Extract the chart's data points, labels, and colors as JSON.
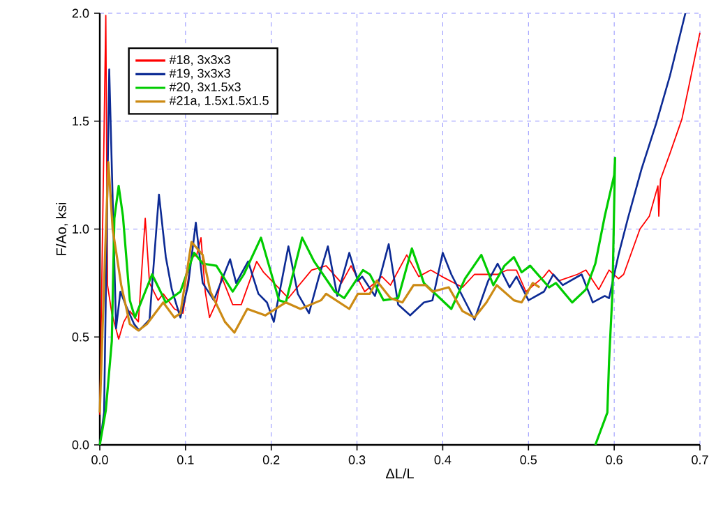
{
  "chart_data": {
    "type": "line",
    "xlabel": "ΔL/L",
    "ylabel": "F/Ao,  ksi",
    "xlim": [
      0,
      0.7
    ],
    "ylim": [
      0,
      2.0
    ],
    "xticks": [
      {
        "value": 0,
        "label": "0.0"
      },
      {
        "value": 0.1,
        "label": "0.1"
      },
      {
        "value": 0.2,
        "label": "0.2"
      },
      {
        "value": 0.3,
        "label": "0.3"
      },
      {
        "value": 0.4,
        "label": "0.4"
      },
      {
        "value": 0.5,
        "label": "0.5"
      },
      {
        "value": 0.6,
        "label": "0.6"
      },
      {
        "value": 0.7,
        "label": "0.7"
      }
    ],
    "yticks": [
      {
        "value": 0,
        "label": "0.0"
      },
      {
        "value": 0.5,
        "label": "0.5"
      },
      {
        "value": 1.0,
        "label": "1.0"
      },
      {
        "value": 1.5,
        "label": "1.5"
      },
      {
        "value": 2.0,
        "label": "2.0"
      }
    ],
    "grid": true,
    "legend": "top left",
    "marker": "none",
    "line_style": "solid",
    "series": [
      {
        "name": "#18, 3x3x3",
        "color": "#ff0000",
        "x": [
          0,
          0.007,
          0.009,
          0.014,
          0.022,
          0.028,
          0.035,
          0.045,
          0.053,
          0.058,
          0.068,
          0.074,
          0.087,
          0.097,
          0.107,
          0.113,
          0.118,
          0.123,
          0.128,
          0.136,
          0.142,
          0.155,
          0.165,
          0.183,
          0.191,
          0.22,
          0.247,
          0.264,
          0.282,
          0.293,
          0.309,
          0.329,
          0.339,
          0.358,
          0.372,
          0.386,
          0.399,
          0.423,
          0.437,
          0.453,
          0.464,
          0.475,
          0.486,
          0.497,
          0.518,
          0.524,
          0.535,
          0.557,
          0.567,
          0.582,
          0.594,
          0.605,
          0.611,
          0.63,
          0.641,
          0.651,
          0.652,
          0.654,
          0.665,
          0.679,
          0.687,
          0.7
        ],
        "values": [
          0.14,
          1.99,
          0.74,
          0.61,
          0.49,
          0.57,
          0.62,
          0.57,
          1.05,
          0.75,
          0.67,
          0.7,
          0.63,
          0.61,
          0.87,
          0.88,
          0.96,
          0.71,
          0.59,
          0.66,
          0.78,
          0.65,
          0.65,
          0.85,
          0.8,
          0.68,
          0.81,
          0.83,
          0.75,
          0.83,
          0.71,
          0.78,
          0.74,
          0.88,
          0.78,
          0.81,
          0.78,
          0.73,
          0.79,
          0.79,
          0.79,
          0.81,
          0.81,
          0.71,
          0.78,
          0.81,
          0.76,
          0.79,
          0.81,
          0.72,
          0.81,
          0.77,
          0.79,
          1.0,
          1.06,
          1.2,
          1.06,
          1.23,
          1.35,
          1.51,
          1.66,
          1.91
        ]
      },
      {
        "name": "#19, 3x3x3",
        "color": "#0c2a94",
        "x": [
          0,
          0.005,
          0.011,
          0.019,
          0.024,
          0.03,
          0.04,
          0.046,
          0.058,
          0.069,
          0.077,
          0.084,
          0.094,
          0.103,
          0.112,
          0.12,
          0.133,
          0.152,
          0.159,
          0.173,
          0.185,
          0.195,
          0.203,
          0.22,
          0.231,
          0.244,
          0.255,
          0.266,
          0.277,
          0.291,
          0.301,
          0.306,
          0.321,
          0.337,
          0.348,
          0.362,
          0.378,
          0.388,
          0.4,
          0.41,
          0.437,
          0.453,
          0.464,
          0.478,
          0.486,
          0.5,
          0.518,
          0.529,
          0.54,
          0.562,
          0.575,
          0.589,
          0.594,
          0.605,
          0.616,
          0.632,
          0.649,
          0.665,
          0.683
        ],
        "values": [
          0.0,
          0.15,
          1.74,
          0.54,
          0.71,
          0.65,
          0.56,
          0.53,
          0.58,
          1.16,
          0.87,
          0.72,
          0.59,
          0.74,
          1.03,
          0.75,
          0.67,
          0.86,
          0.75,
          0.85,
          0.7,
          0.66,
          0.57,
          0.92,
          0.7,
          0.61,
          0.77,
          0.92,
          0.69,
          0.89,
          0.76,
          0.78,
          0.69,
          0.93,
          0.65,
          0.6,
          0.66,
          0.67,
          0.89,
          0.79,
          0.58,
          0.76,
          0.84,
          0.73,
          0.78,
          0.67,
          0.71,
          0.79,
          0.74,
          0.79,
          0.66,
          0.69,
          0.68,
          0.88,
          1.05,
          1.28,
          1.49,
          1.71,
          2.0
        ]
      },
      {
        "name": "#20, 3x1.5x3",
        "color": "#00cc00",
        "x": [
          0,
          0.007,
          0.014,
          0.017,
          0.022,
          0.027,
          0.035,
          0.041,
          0.061,
          0.077,
          0.094,
          0.11,
          0.12,
          0.136,
          0.155,
          0.168,
          0.188,
          0.209,
          0.217,
          0.236,
          0.25,
          0.274,
          0.285,
          0.307,
          0.315,
          0.331,
          0.348,
          0.364,
          0.378,
          0.41,
          0.426,
          0.445,
          0.459,
          0.472,
          0.483,
          0.492,
          0.502,
          0.524,
          0.532,
          0.551,
          0.567,
          0.578,
          0.589,
          0.6,
          0.601,
          0.598,
          0.594,
          0.592,
          0.578
        ],
        "values": [
          0.0,
          0.16,
          0.48,
          1.05,
          1.2,
          1.06,
          0.67,
          0.59,
          0.79,
          0.66,
          0.71,
          0.89,
          0.84,
          0.83,
          0.71,
          0.79,
          0.96,
          0.67,
          0.66,
          0.96,
          0.85,
          0.71,
          0.68,
          0.81,
          0.79,
          0.67,
          0.68,
          0.91,
          0.75,
          0.63,
          0.77,
          0.88,
          0.74,
          0.83,
          0.87,
          0.8,
          0.83,
          0.73,
          0.75,
          0.66,
          0.72,
          0.84,
          1.06,
          1.25,
          1.33,
          0.71,
          0.39,
          0.15,
          0.0
        ]
      },
      {
        "name": "#21a, 1.5x1.5x1.5",
        "color": "#cc8a14",
        "x": [
          0,
          0.006,
          0.01,
          0.015,
          0.025,
          0.035,
          0.045,
          0.055,
          0.074,
          0.087,
          0.094,
          0.107,
          0.12,
          0.129,
          0.146,
          0.157,
          0.172,
          0.193,
          0.217,
          0.234,
          0.258,
          0.264,
          0.291,
          0.301,
          0.315,
          0.323,
          0.339,
          0.353,
          0.366,
          0.38,
          0.388,
          0.407,
          0.423,
          0.437,
          0.451,
          0.463,
          0.483,
          0.492,
          0.505,
          0.513
        ],
        "values": [
          0.15,
          0.87,
          1.31,
          1.0,
          0.74,
          0.56,
          0.53,
          0.56,
          0.66,
          0.59,
          0.61,
          0.94,
          0.88,
          0.71,
          0.57,
          0.52,
          0.63,
          0.6,
          0.66,
          0.63,
          0.67,
          0.7,
          0.63,
          0.7,
          0.7,
          0.76,
          0.68,
          0.66,
          0.74,
          0.74,
          0.71,
          0.73,
          0.62,
          0.59,
          0.66,
          0.74,
          0.67,
          0.66,
          0.75,
          0.73
        ]
      }
    ]
  }
}
